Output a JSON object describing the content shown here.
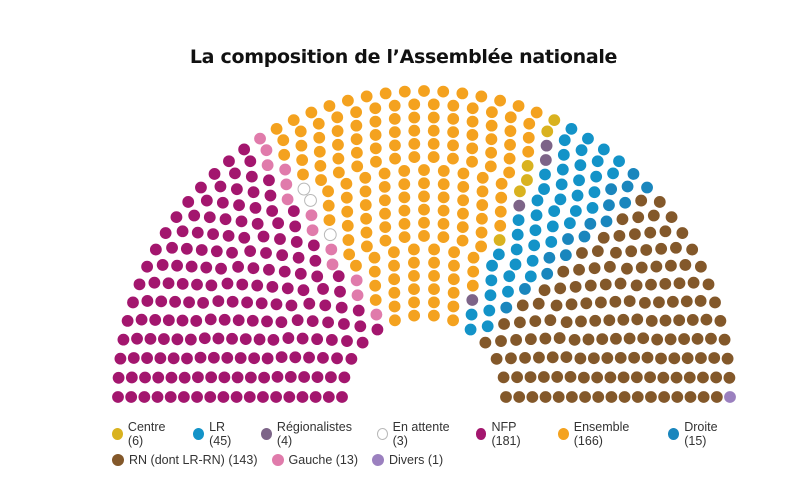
{
  "chart_data": {
    "type": "parliament",
    "title": "La composition de l’Assemblée nationale",
    "total_seats": 577,
    "seat_order": [
      "nfp",
      "gauche",
      "attente",
      "ensemble",
      "centre",
      "regionalistes",
      "lr",
      "droite",
      "rn",
      "divers"
    ],
    "groups": {
      "nfp": {
        "label": "NFP (181)",
        "seats": 181,
        "color": "#a3166e"
      },
      "gauche": {
        "label": "Gauche (13)",
        "seats": 13,
        "color": "#e07bab"
      },
      "attente": {
        "label": "En attente (3)",
        "seats": 3,
        "color": "#ffffff"
      },
      "ensemble": {
        "label": "Ensemble (166)",
        "seats": 166,
        "color": "#f4a21f"
      },
      "centre": {
        "label": "Centre (6)",
        "seats": 6,
        "color": "#d9b21f"
      },
      "regionalistes": {
        "label": "Régionalistes (4)",
        "seats": 4,
        "color": "#7d6488"
      },
      "lr": {
        "label": "LR (45)",
        "seats": 45,
        "color": "#1393c8"
      },
      "droite": {
        "label": "Droite (15)",
        "seats": 15,
        "color": "#1a86bd"
      },
      "rn": {
        "label": "RN (dont LR-RN) (143)",
        "seats": 143,
        "color": "#83582a"
      },
      "divers": {
        "label": "Divers (1)",
        "seats": 1,
        "color": "#9b80bf"
      }
    },
    "legend_rows": [
      [
        "centre",
        "lr",
        "regionalistes",
        "attente",
        "nfp",
        "ensemble",
        "droite"
      ],
      [
        "rn",
        "gauche",
        "divers"
      ]
    ]
  }
}
